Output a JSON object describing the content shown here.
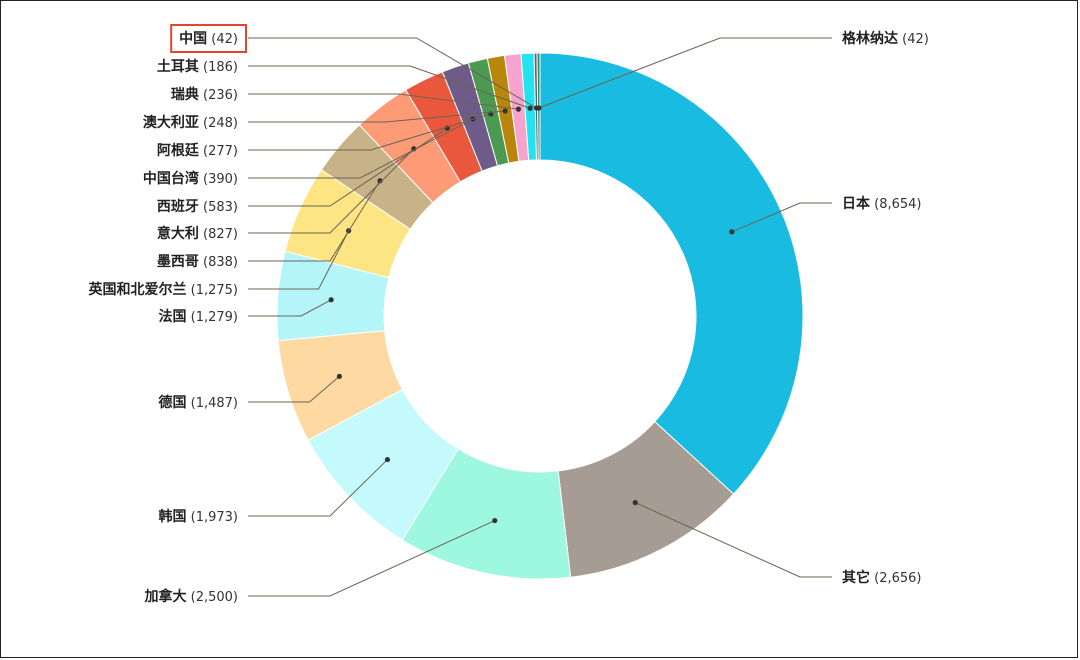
{
  "chart_data": {
    "type": "pie",
    "donut": true,
    "slices": [
      {
        "label": "日本",
        "value": 8654,
        "display": "(8,654)",
        "color": "#19BBE0"
      },
      {
        "label": "其它",
        "value": 2656,
        "display": "(2,656)",
        "color": "#A69C93"
      },
      {
        "label": "加拿大",
        "value": 2500,
        "display": "(2,500)",
        "color": "#9EF7DF"
      },
      {
        "label": "韩国",
        "value": 1973,
        "display": "(1,973)",
        "color": "#C5FAFC"
      },
      {
        "label": "德国",
        "value": 1487,
        "display": "(1,487)",
        "color": "#FED9A2"
      },
      {
        "label": "法国",
        "value": 1279,
        "display": "(1,279)",
        "color": "#B4F5FA"
      },
      {
        "label": "英国和北爱尔兰",
        "value": 1275,
        "display": "(1,275)",
        "color": "#FDE583"
      },
      {
        "label": "墨西哥",
        "value": 838,
        "display": "(838)",
        "color": "#C8B288"
      },
      {
        "label": "意大利",
        "value": 827,
        "display": "(827)",
        "color": "#FE9B77"
      },
      {
        "label": "西班牙",
        "value": 583,
        "display": "(583)",
        "color": "#E9583C"
      },
      {
        "label": "中国台湾",
        "value": 390,
        "display": "(390)",
        "color": "#6E5B8A"
      },
      {
        "label": "阿根廷",
        "value": 277,
        "display": "(277)",
        "color": "#4C9A52"
      },
      {
        "label": "澳大利亚",
        "value": 248,
        "display": "(248)",
        "color": "#B8860B"
      },
      {
        "label": "瑞典",
        "value": 236,
        "display": "(236)",
        "color": "#F7A3CF"
      },
      {
        "label": "土耳其",
        "value": 186,
        "display": "(186)",
        "color": "#22E3EE"
      },
      {
        "label": "中国",
        "value": 42,
        "display": "(42)",
        "color": "#5C5C8A",
        "highlighted": true
      },
      {
        "label": "格林纳达",
        "value": 42,
        "display": "(42)",
        "color": "#2E8B57"
      }
    ],
    "highlight_color": "#E0452F"
  }
}
